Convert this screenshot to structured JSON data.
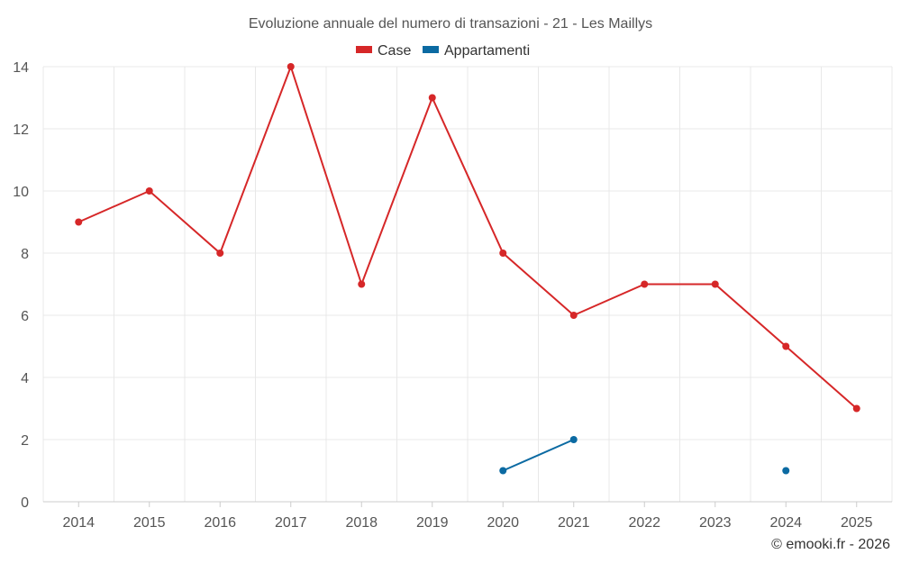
{
  "chart_data": {
    "type": "line",
    "title": "Evoluzione annuale del numero di transazioni - 21 - Les Maillys",
    "categories": [
      "2014",
      "2015",
      "2016",
      "2017",
      "2018",
      "2019",
      "2020",
      "2021",
      "2022",
      "2023",
      "2024",
      "2025"
    ],
    "series": [
      {
        "name": "Case",
        "color": "#d62728",
        "values": [
          9,
          10,
          8,
          14,
          7,
          13,
          8,
          6,
          7,
          7,
          5,
          3
        ]
      },
      {
        "name": "Appartamenti",
        "color": "#0b6aa2",
        "values": [
          null,
          null,
          null,
          null,
          null,
          null,
          1,
          2,
          null,
          null,
          1,
          null
        ]
      }
    ],
    "yticks": [
      0,
      2,
      4,
      6,
      8,
      10,
      12,
      14
    ],
    "ylim": [
      0,
      14
    ],
    "grid": true,
    "legend": "top-center",
    "xlabel": "",
    "ylabel": ""
  },
  "credit": "© emooki.fr - 2026"
}
